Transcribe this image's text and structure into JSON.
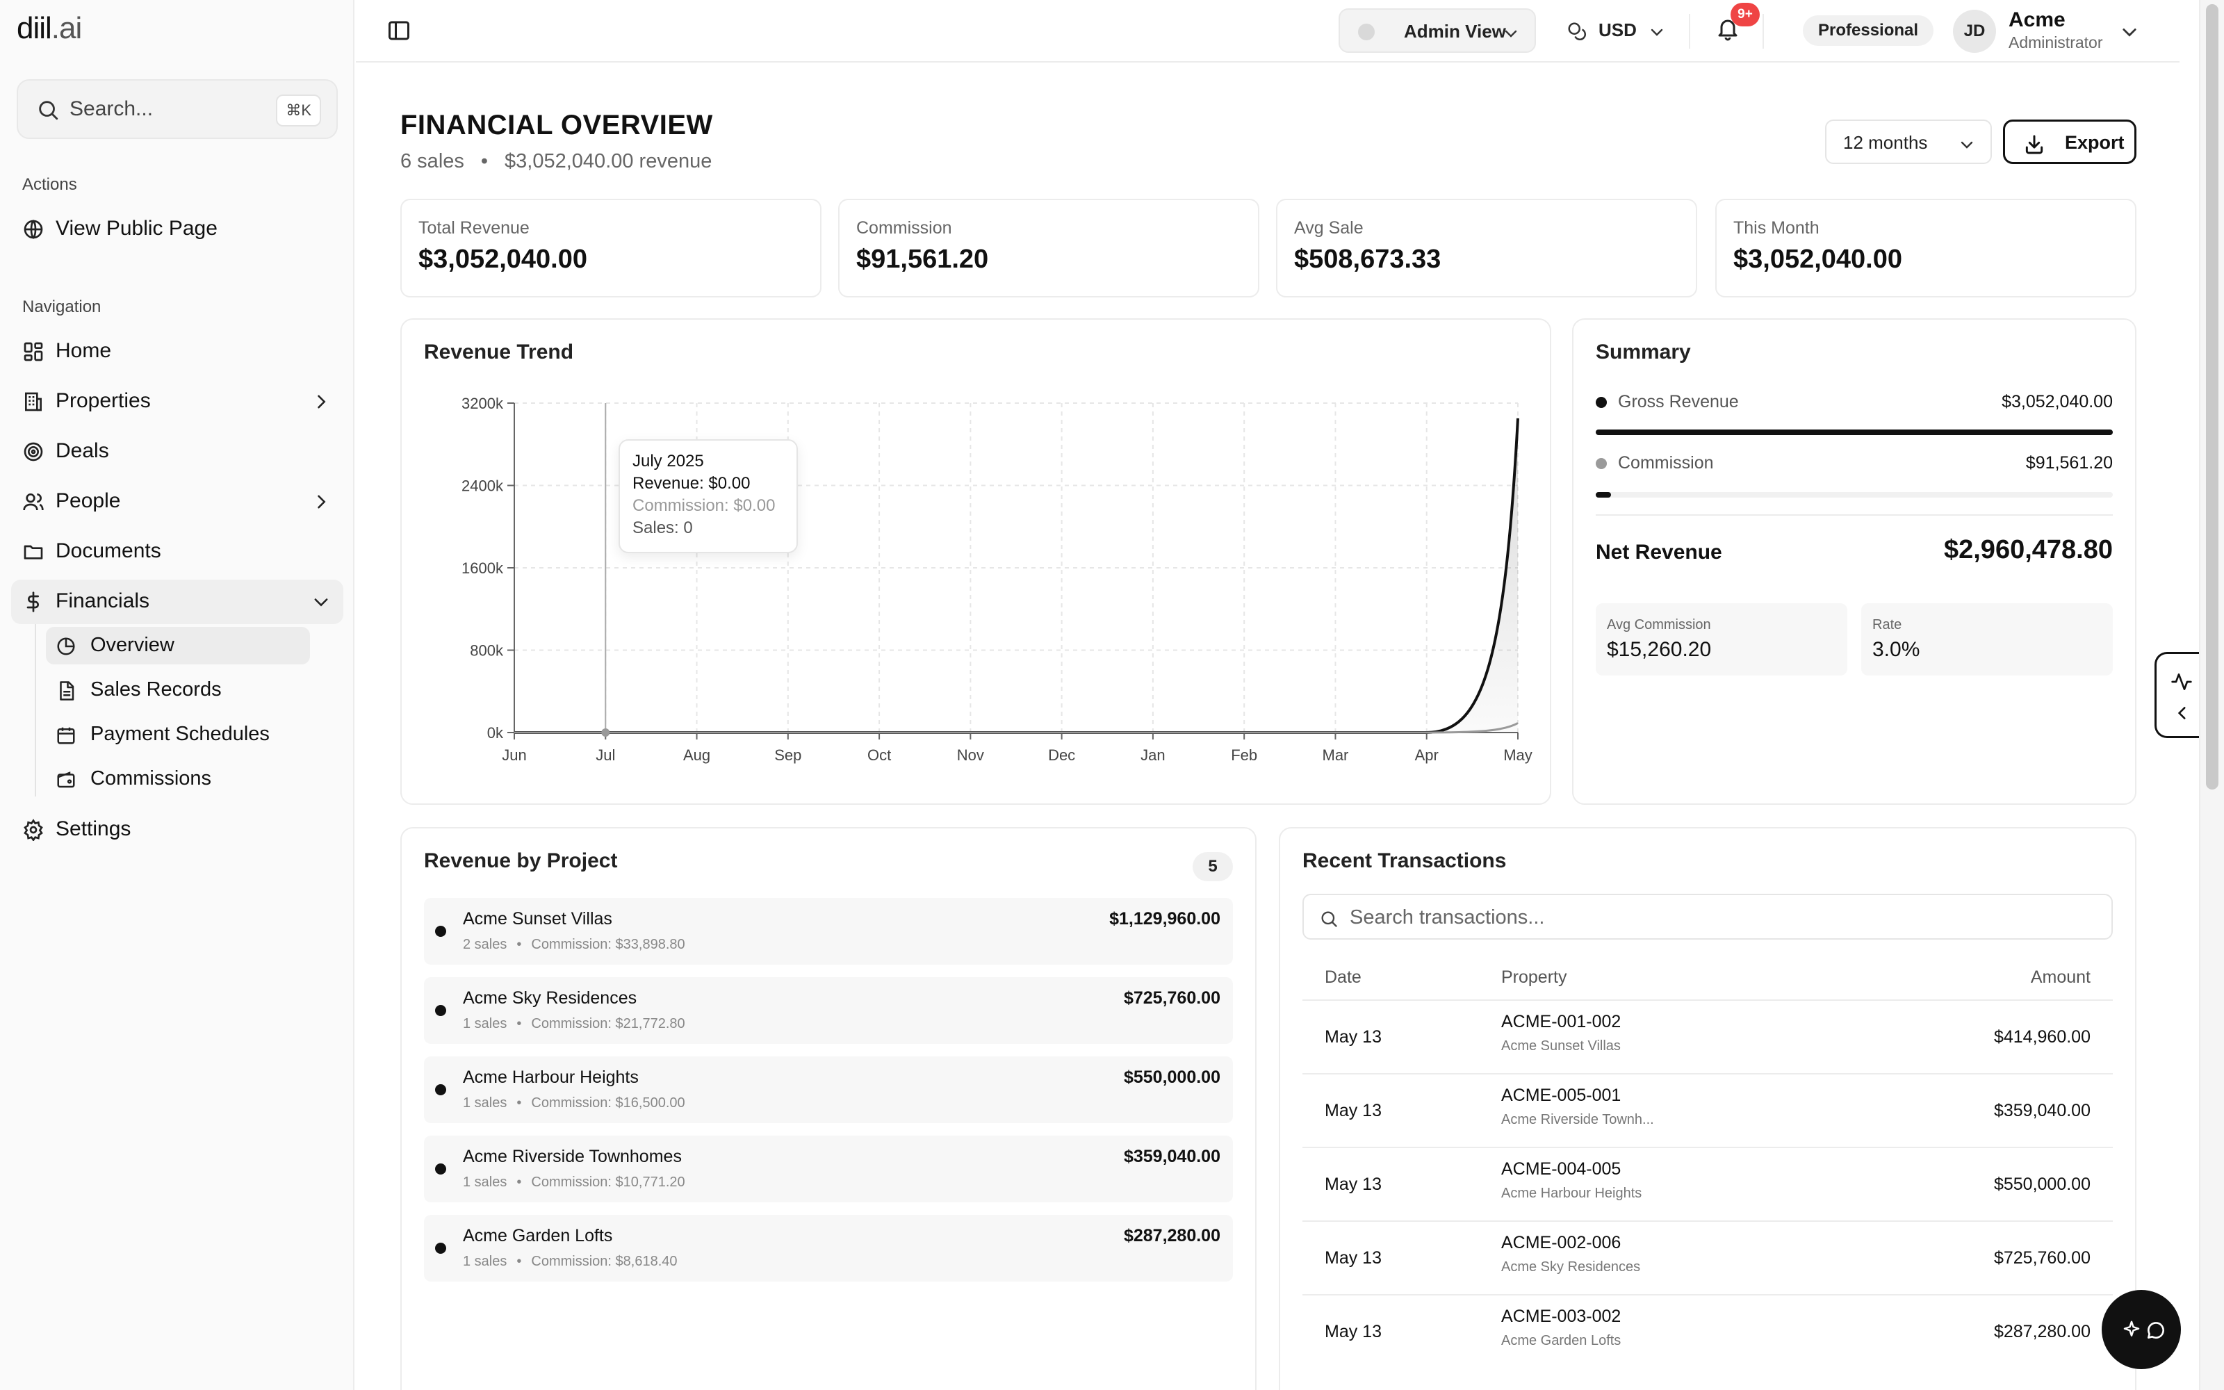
{
  "brand": {
    "name": "diil",
    "tld": ".ai"
  },
  "sidebar": {
    "search_placeholder": "Search...",
    "search_shortcut": "⌘K",
    "actions_label": "Actions",
    "view_public_page": "View Public Page",
    "navigation_label": "Navigation",
    "items": [
      {
        "label": "Home",
        "icon": "grid-icon"
      },
      {
        "label": "Properties",
        "icon": "building-icon"
      },
      {
        "label": "Deals",
        "icon": "target-icon"
      },
      {
        "label": "People",
        "icon": "users-icon"
      },
      {
        "label": "Documents",
        "icon": "folder-icon"
      },
      {
        "label": "Financials",
        "icon": "dollar-icon"
      }
    ],
    "financials_sub": [
      {
        "label": "Overview",
        "icon": "pie-chart-icon"
      },
      {
        "label": "Sales Records",
        "icon": "file-icon"
      },
      {
        "label": "Payment Schedules",
        "icon": "calendar-icon"
      },
      {
        "label": "Commissions",
        "icon": "wallet-icon"
      }
    ],
    "settings": "Settings"
  },
  "topbar": {
    "view": "Admin View",
    "currency": "USD",
    "notifications_badge": "9+",
    "plan": "Professional",
    "avatar_initials": "JD",
    "user_name": "Acme",
    "user_role": "Administrator"
  },
  "page": {
    "title": "FINANCIAL OVERVIEW",
    "sales_count": "6 sales",
    "revenue_text": "$3,052,040.00 revenue",
    "period": "12 months",
    "export": "Export"
  },
  "stats": [
    {
      "label": "Total Revenue",
      "value": "$3,052,040.00"
    },
    {
      "label": "Commission",
      "value": "$91,561.20"
    },
    {
      "label": "Avg Sale",
      "value": "$508,673.33"
    },
    {
      "label": "This Month",
      "value": "$3,052,040.00"
    }
  ],
  "revenue_trend": {
    "title": "Revenue Trend",
    "tooltip": {
      "title": "July 2025",
      "revenue": "Revenue: $0.00",
      "commission": "Commission: $0.00",
      "sales": "Sales: 0"
    }
  },
  "chart_data": {
    "type": "area",
    "title": "Revenue Trend",
    "categories": [
      "Jun",
      "Jul",
      "Aug",
      "Sep",
      "Oct",
      "Nov",
      "Dec",
      "Jan",
      "Feb",
      "Mar",
      "Apr",
      "May"
    ],
    "y_ticks": [
      "0k",
      "800k",
      "1600k",
      "2400k",
      "3200k"
    ],
    "ylim": [
      0,
      3200000
    ],
    "grid": true,
    "series": [
      {
        "values": [
          0,
          0,
          0,
          0,
          0,
          0,
          0,
          0,
          0,
          0,
          0,
          3052040
        ],
        "color": "#111111"
      },
      {
        "values": [
          0,
          0,
          0,
          0,
          0,
          0,
          0,
          0,
          0,
          0,
          0,
          91561.2
        ],
        "color": "#9a9a9a"
      }
    ]
  },
  "summary": {
    "title": "Summary",
    "gross_label": "Gross Revenue",
    "gross_value": "$3,052,040.00",
    "gross_fill": 1.0,
    "commission_label": "Commission",
    "commission_value": "$91,561.20",
    "commission_fill": 0.03,
    "net_label": "Net Revenue",
    "net_value": "$2,960,478.80",
    "avg_commission_label": "Avg Commission",
    "avg_commission_value": "$15,260.20",
    "rate_label": "Rate",
    "rate_value": "3.0%",
    "colors": {
      "gross": "#111111",
      "commission": "#9a9a9a"
    }
  },
  "projects": {
    "title": "Revenue by Project",
    "count": "5",
    "items": [
      {
        "name": "Acme Sunset Villas",
        "sales": "2 sales",
        "commission": "Commission: $33,898.80",
        "amount": "$1,129,960.00"
      },
      {
        "name": "Acme Sky Residences",
        "sales": "1 sales",
        "commission": "Commission: $21,772.80",
        "amount": "$725,760.00"
      },
      {
        "name": "Acme Harbour Heights",
        "sales": "1 sales",
        "commission": "Commission: $16,500.00",
        "amount": "$550,000.00"
      },
      {
        "name": "Acme Riverside Townhomes",
        "sales": "1 sales",
        "commission": "Commission: $10,771.20",
        "amount": "$359,040.00"
      },
      {
        "name": "Acme Garden Lofts",
        "sales": "1 sales",
        "commission": "Commission: $8,618.40",
        "amount": "$287,280.00"
      }
    ]
  },
  "transactions": {
    "title": "Recent Transactions",
    "search_placeholder": "Search transactions...",
    "headers": {
      "date": "Date",
      "property": "Property",
      "amount": "Amount"
    },
    "rows": [
      {
        "date": "May 13",
        "code": "ACME-001-002",
        "property": "Acme Sunset Villas",
        "amount": "$414,960.00"
      },
      {
        "date": "May 13",
        "code": "ACME-005-001",
        "property": "Acme Riverside Townh...",
        "amount": "$359,040.00"
      },
      {
        "date": "May 13",
        "code": "ACME-004-005",
        "property": "Acme Harbour Heights",
        "amount": "$550,000.00"
      },
      {
        "date": "May 13",
        "code": "ACME-002-006",
        "property": "Acme Sky Residences",
        "amount": "$725,760.00"
      },
      {
        "date": "May 13",
        "code": "ACME-003-002",
        "property": "Acme Garden Lofts",
        "amount": "$287,280.00"
      }
    ]
  }
}
